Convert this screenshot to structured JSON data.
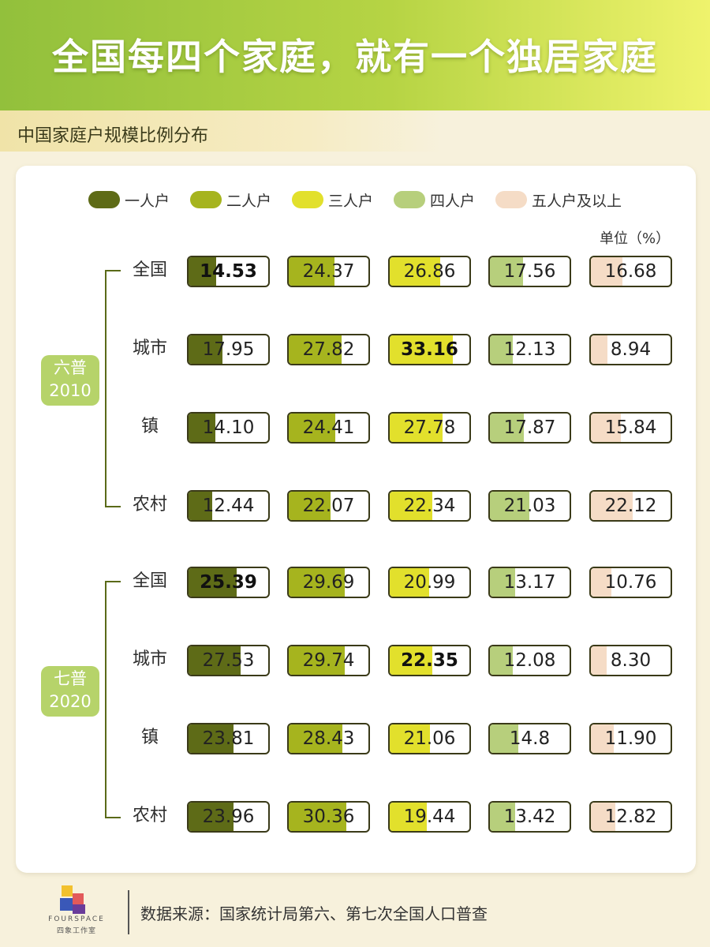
{
  "title": "全国每四个家庭，就有一个独居家庭",
  "subtitle": "中国家庭户规模比例分布",
  "unit": "单位（%）",
  "colors": {
    "one": "#5e6b17",
    "two": "#a6b41e",
    "three": "#e2e02c",
    "four": "#b7cf7c",
    "five": "#f5dcc6",
    "census_badge": "#b6d36a",
    "header_start": "#92c03c",
    "header_end": "#eff36c"
  },
  "chart_data": {
    "type": "table",
    "title": "中国家庭户规模比例分布",
    "unit": "单位（%）",
    "legend": [
      "一人户",
      "二人户",
      "三人户",
      "四人户",
      "五人户及以上"
    ],
    "groups": [
      {
        "label_line1": "六普",
        "label_line2": "2010",
        "rows": [
          {
            "label": "全国",
            "values": [
              "14.53",
              "24.37",
              "26.86",
              "17.56",
              "16.68"
            ],
            "highlight": 0
          },
          {
            "label": "城市",
            "values": [
              "17.95",
              "27.82",
              "33.16",
              "12.13",
              "8.94"
            ],
            "highlight": 2
          },
          {
            "label": "镇",
            "values": [
              "14.10",
              "24.41",
              "27.78",
              "17.87",
              "15.84"
            ],
            "highlight": -1
          },
          {
            "label": "农村",
            "values": [
              "12.44",
              "22.07",
              "22.34",
              "21.03",
              "22.12"
            ],
            "highlight": -1
          }
        ]
      },
      {
        "label_line1": "七普",
        "label_line2": "2020",
        "rows": [
          {
            "label": "全国",
            "values": [
              "25.39",
              "29.69",
              "20.99",
              "13.17",
              "10.76"
            ],
            "highlight": 0
          },
          {
            "label": "城市",
            "values": [
              "27.53",
              "29.74",
              "22.35",
              "12.08",
              "8.30"
            ],
            "highlight": 2
          },
          {
            "label": "镇",
            "values": [
              "23.81",
              "28.43",
              "21.06",
              "14.8",
              "11.90"
            ],
            "highlight": -1
          },
          {
            "label": "农村",
            "values": [
              "23.96",
              "30.36",
              "19.44",
              "13.42",
              "12.82"
            ],
            "highlight": -1
          }
        ]
      }
    ]
  },
  "footer": {
    "brand_en": "FOURSPACE",
    "brand_cn": "四象工作室",
    "source": "数据来源：国家统计局第六、第七次全国人口普查"
  }
}
